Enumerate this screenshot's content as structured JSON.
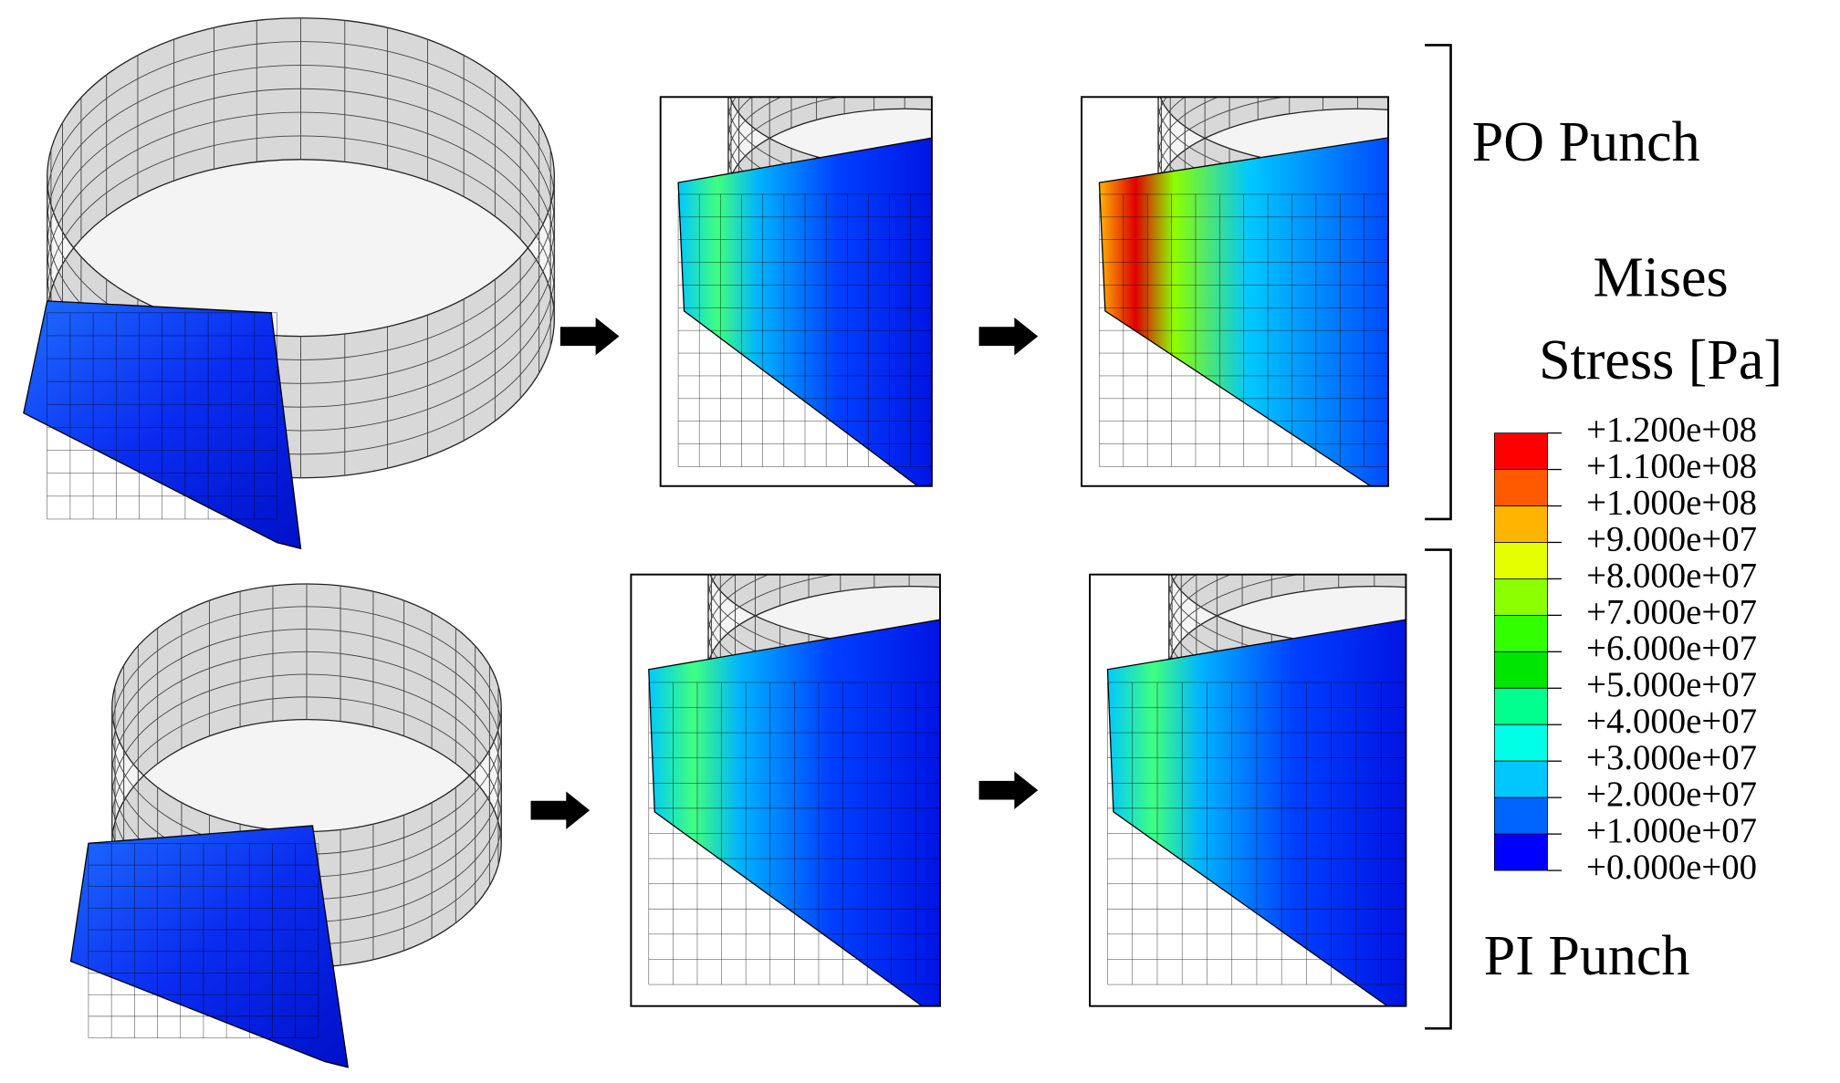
{
  "labels": {
    "top_row": "PO Punch",
    "bottom_row": "PI Punch"
  },
  "legend": {
    "title": [
      "Mises",
      "Stress [Pa]"
    ],
    "ticks": [
      "+1.200e+08",
      "+1.100e+08",
      "+1.000e+08",
      "+9.000e+07",
      "+8.000e+07",
      "+7.000e+07",
      "+6.000e+07",
      "+5.000e+07",
      "+4.000e+07",
      "+3.000e+07",
      "+2.000e+07",
      "+1.000e+07",
      "+0.000e+00"
    ],
    "colors": [
      "#ff0000",
      "#ff5a00",
      "#ffb400",
      "#e6ff00",
      "#8cff00",
      "#32ff00",
      "#00e600",
      "#00ff8c",
      "#00ffe6",
      "#00c8ff",
      "#0064ff",
      "#0000ff"
    ]
  }
}
